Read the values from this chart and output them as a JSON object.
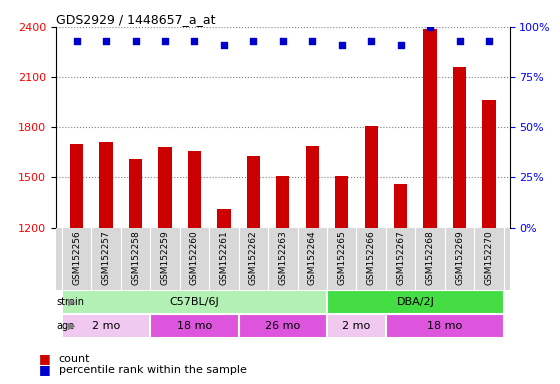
{
  "title": "GDS2929 / 1448657_a_at",
  "samples": [
    "GSM152256",
    "GSM152257",
    "GSM152258",
    "GSM152259",
    "GSM152260",
    "GSM152261",
    "GSM152262",
    "GSM152263",
    "GSM152264",
    "GSM152265",
    "GSM152266",
    "GSM152267",
    "GSM152268",
    "GSM152269",
    "GSM152270"
  ],
  "counts": [
    1700,
    1710,
    1610,
    1680,
    1660,
    1310,
    1630,
    1510,
    1690,
    1510,
    1810,
    1460,
    2390,
    2160,
    1960
  ],
  "percentile_ranks": [
    93,
    93,
    93,
    93,
    93,
    91,
    93,
    93,
    93,
    91,
    93,
    91,
    100,
    93,
    93
  ],
  "ylim_left": [
    1200,
    2400
  ],
  "ylim_right": [
    0,
    100
  ],
  "yticks_left": [
    1200,
    1500,
    1800,
    2100,
    2400
  ],
  "yticks_right": [
    0,
    25,
    50,
    75,
    100
  ],
  "bar_color": "#cc0000",
  "dot_color": "#0000cc",
  "strain_groups": [
    {
      "label": "C57BL/6J",
      "start": 0,
      "end": 8,
      "color": "#b3f0b3"
    },
    {
      "label": "DBA/2J",
      "start": 9,
      "end": 14,
      "color": "#44dd44"
    }
  ],
  "age_groups": [
    {
      "label": "2 mo",
      "start": 0,
      "end": 2,
      "color": "#f0c8f0"
    },
    {
      "label": "18 mo",
      "start": 3,
      "end": 5,
      "color": "#dd55dd"
    },
    {
      "label": "26 mo",
      "start": 6,
      "end": 8,
      "color": "#dd55dd"
    },
    {
      "label": "2 mo",
      "start": 9,
      "end": 10,
      "color": "#f0c8f0"
    },
    {
      "label": "18 mo",
      "start": 11,
      "end": 14,
      "color": "#dd55dd"
    }
  ],
  "xlabel_strain": "strain",
  "xlabel_age": "age",
  "legend_count_color": "#cc0000",
  "legend_pct_color": "#0000cc",
  "xticklabel_bg": "#d8d8d8"
}
